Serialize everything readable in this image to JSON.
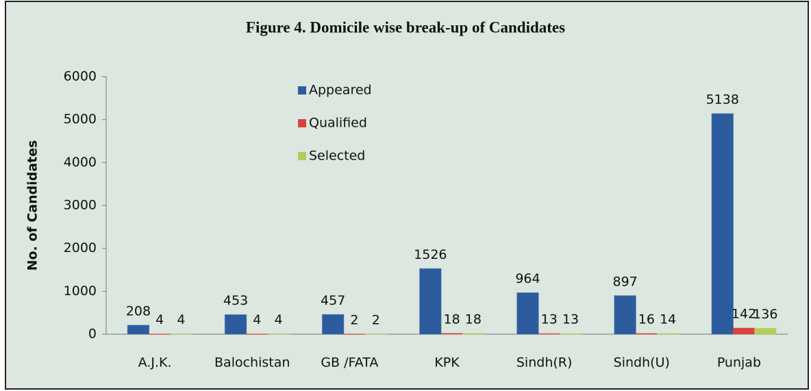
{
  "chart_data": {
    "type": "bar",
    "title": "Figure 4. Domicile wise break-up of Candidates",
    "ylabel": "No. of Candidates",
    "categories": [
      "A.J.K.",
      "Balochistan",
      "GB /FATA",
      "KPK",
      "Sindh(R)",
      "Sindh(U)",
      "Punjab"
    ],
    "series": [
      {
        "name": "Appeared",
        "color": "#2d5c9e",
        "values": [
          208,
          453,
          457,
          1526,
          964,
          897,
          5138
        ]
      },
      {
        "name": "Qualified",
        "color": "#d9423f",
        "values": [
          4,
          4,
          2,
          18,
          13,
          16,
          142
        ]
      },
      {
        "name": "Selected",
        "color": "#b5cc5a",
        "values": [
          4,
          4,
          2,
          18,
          13,
          14,
          136
        ]
      }
    ],
    "ylim": [
      0,
      6000
    ],
    "yticks": [
      0,
      1000,
      2000,
      3000,
      4000,
      5000,
      6000
    ],
    "grid": false
  }
}
